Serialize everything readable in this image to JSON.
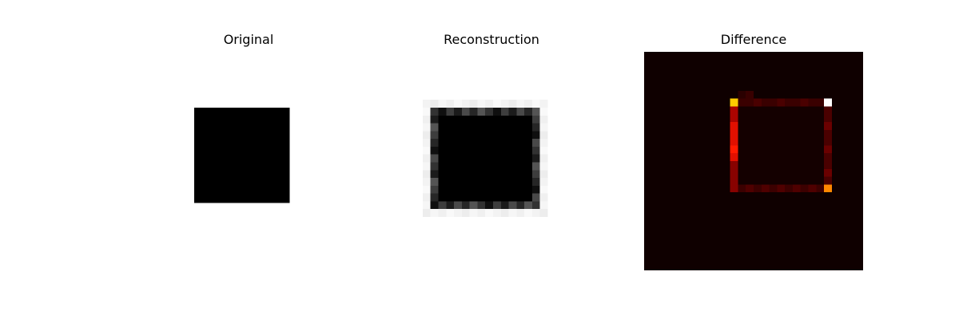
{
  "chart_data": [
    {
      "type": "heatmap",
      "title": "Original",
      "colormap": "gray",
      "axes_visible": false,
      "grid_size": [
        28,
        28
      ],
      "square": {
        "rows": [
          7,
          18
        ],
        "cols": [
          7,
          18
        ],
        "value": 0
      },
      "background_value": 1
    },
    {
      "type": "heatmap",
      "title": "Reconstruction",
      "colormap": "gray",
      "axes_visible": false,
      "grid_size": [
        28,
        28
      ],
      "square": {
        "rows": [
          7,
          18
        ],
        "cols": [
          7,
          18
        ],
        "value": 0
      },
      "background_value": 1,
      "edge_blur": "soft gray halo around square border"
    },
    {
      "type": "heatmap",
      "title": "Difference",
      "colormap": "hot",
      "axes_visible": false,
      "grid_size": [
        28,
        28
      ],
      "outline": {
        "rows": [
          6,
          17
        ],
        "cols": [
          11,
          23
        ]
      },
      "highlights": [
        {
          "row": 6,
          "col": 11,
          "color": "#ffcc00"
        },
        {
          "row": 6,
          "col": 23,
          "color": "#ffffff"
        },
        {
          "row": 17,
          "col": 23,
          "color": "#ff8800"
        }
      ]
    }
  ]
}
